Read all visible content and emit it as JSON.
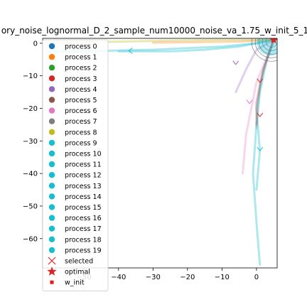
{
  "chart_data": {
    "type": "scatter",
    "title": "ory_noise_lognormal_D_2_sample_num10000_noise_va_1.75_w_init_5_1",
    "xlabel": "",
    "ylabel": "",
    "xlim": [
      -62,
      6
    ],
    "ylim": [
      -69,
      1.5
    ],
    "xticks": [
      -50,
      -40,
      -30,
      -20,
      -10,
      0
    ],
    "yticks": [
      0,
      -10,
      -20,
      -30,
      -40,
      -50,
      -60
    ],
    "xtick_labels": [
      "−50",
      "−40",
      "−30",
      "−20",
      "−10",
      "0"
    ],
    "ytick_labels": [
      "0",
      "−10",
      "−20",
      "−30",
      "−40",
      "−50",
      "−60"
    ],
    "grid": false,
    "legend_position": "upper-left",
    "legend": [
      {
        "label": "process 0",
        "color": "#1f77b4",
        "marker": "circle"
      },
      {
        "label": "process 1",
        "color": "#ff7f0e",
        "marker": "circle"
      },
      {
        "label": "process 2",
        "color": "#2ca02c",
        "marker": "circle"
      },
      {
        "label": "process 3",
        "color": "#d62728",
        "marker": "circle"
      },
      {
        "label": "process 4",
        "color": "#9467bd",
        "marker": "circle"
      },
      {
        "label": "process 5",
        "color": "#8c564b",
        "marker": "circle"
      },
      {
        "label": "process 6",
        "color": "#e377c2",
        "marker": "circle"
      },
      {
        "label": "process 7",
        "color": "#7f7f7f",
        "marker": "circle"
      },
      {
        "label": "process 8",
        "color": "#bcbd22",
        "marker": "circle"
      },
      {
        "label": "process 9",
        "color": "#17becf",
        "marker": "circle"
      },
      {
        "label": "process 10",
        "color": "#17becf",
        "marker": "circle"
      },
      {
        "label": "process 11",
        "color": "#17becf",
        "marker": "circle"
      },
      {
        "label": "process 12",
        "color": "#17becf",
        "marker": "circle"
      },
      {
        "label": "process 13",
        "color": "#17becf",
        "marker": "circle"
      },
      {
        "label": "process 14",
        "color": "#17becf",
        "marker": "circle"
      },
      {
        "label": "process 15",
        "color": "#17becf",
        "marker": "circle"
      },
      {
        "label": "process 16",
        "color": "#17becf",
        "marker": "circle"
      },
      {
        "label": "process 17",
        "color": "#17becf",
        "marker": "circle"
      },
      {
        "label": "process 18",
        "color": "#17becf",
        "marker": "circle"
      },
      {
        "label": "process 19",
        "color": "#17becf",
        "marker": "circle"
      },
      {
        "label": "selected",
        "color": "#d62728",
        "marker": "x"
      },
      {
        "label": "optimal",
        "color": "#d62728",
        "marker": "star"
      },
      {
        "label": "w_init",
        "color": "#e31a1c",
        "marker": "square"
      }
    ],
    "series": [
      {
        "color": "#bcbd22",
        "alpha": 0.35,
        "x": [
          5,
          -10,
          -25,
          -35,
          -45,
          -55,
          -60
        ],
        "y": [
          1,
          1,
          0.8,
          0.6,
          0.4,
          0.4,
          0.3
        ]
      },
      {
        "color": "#17becf",
        "alpha": 0.35,
        "x": [
          5,
          0,
          -10,
          -20,
          -30,
          -40,
          -50,
          -60
        ],
        "y": [
          1,
          0,
          -1,
          -1.5,
          -2,
          -2.2,
          -2.5,
          -2.5
        ]
      },
      {
        "color": "#17becf",
        "alpha": 0.35,
        "x": [
          5,
          3,
          1,
          0,
          -1,
          0,
          1
        ],
        "y": [
          1,
          -5,
          -15,
          -25,
          -40,
          -55,
          -68
        ]
      },
      {
        "color": "#17becf",
        "alpha": 0.35,
        "x": [
          5,
          2,
          0,
          1,
          0
        ],
        "y": [
          1,
          -8,
          -20,
          -33,
          -45
        ]
      },
      {
        "color": "#e377c2",
        "alpha": 0.3,
        "x": [
          5,
          0,
          -3,
          -4
        ],
        "y": [
          1,
          -12,
          -28,
          -40
        ]
      },
      {
        "color": "#9467bd",
        "alpha": 0.3,
        "x": [
          5,
          0,
          -3,
          -6
        ],
        "y": [
          1,
          -2,
          -8,
          -15
        ]
      },
      {
        "color": "#d62728",
        "alpha": 0.3,
        "x": [
          5,
          2,
          0,
          0
        ],
        "y": [
          1,
          -8,
          -18,
          -25
        ]
      },
      {
        "color": "#7f7f7f",
        "alpha": 0.25,
        "x": [
          5,
          1,
          0
        ],
        "y": [
          1,
          -12,
          -26
        ]
      },
      {
        "color": "#17becf",
        "alpha": 0.35,
        "x": [
          5,
          -5,
          -15,
          -25,
          -40
        ],
        "y": [
          1,
          -1,
          -2,
          -2.5,
          -2.5
        ]
      },
      {
        "color": "#ff7f0e",
        "alpha": 0.3,
        "x": [
          5,
          -5,
          -20,
          -30
        ],
        "y": [
          1,
          0.5,
          0.3,
          0.2
        ]
      }
    ],
    "arrows": [
      {
        "x": -37,
        "y": -2.3,
        "color": "#17becf",
        "dir": "left"
      },
      {
        "x": -6,
        "y": -6.5,
        "color": "#9467bd",
        "dir": "down"
      },
      {
        "x": -2,
        "y": -18.5,
        "color": "#e377c2",
        "dir": "down"
      },
      {
        "x": 1,
        "y": -12,
        "color": "#d62728",
        "dir": "down"
      },
      {
        "x": 1,
        "y": -22.5,
        "color": "#d62728",
        "dir": "down"
      },
      {
        "x": 1,
        "y": -33,
        "color": "#17becf",
        "dir": "down"
      }
    ],
    "w_init": {
      "x": 5,
      "y": 1
    },
    "optimal": {
      "x": 5,
      "y": 1
    }
  }
}
